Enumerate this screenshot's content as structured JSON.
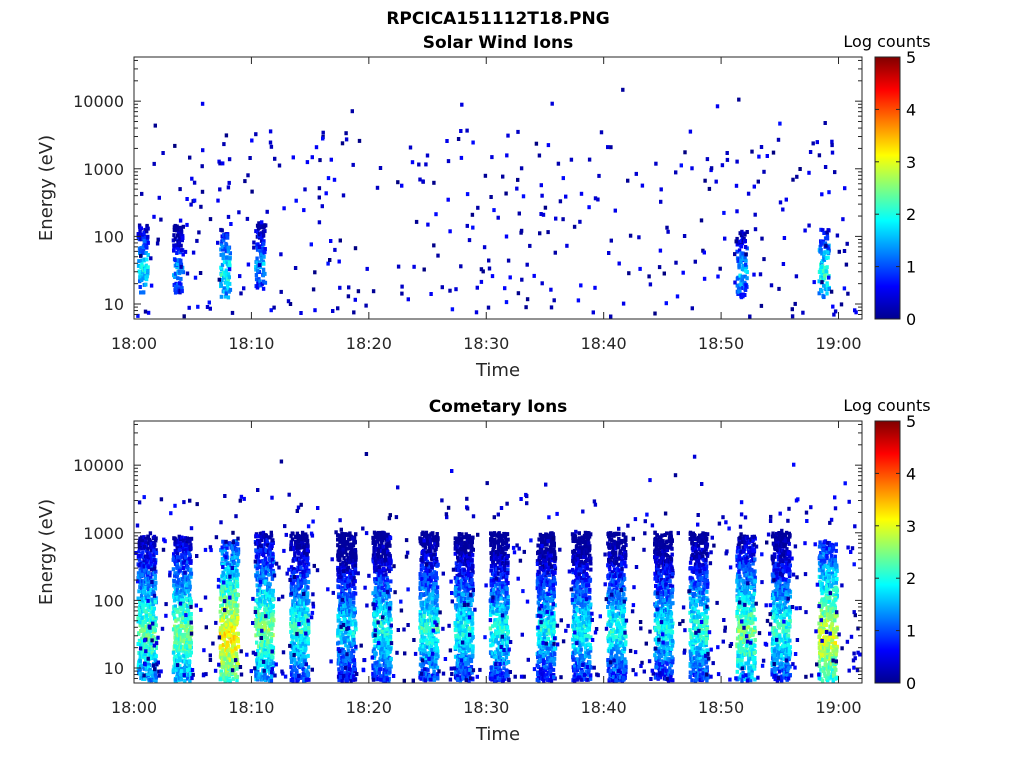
{
  "figure_title": "RPCICA151112T18.PNG",
  "colormap": "jet",
  "chart_data": [
    {
      "type": "heatmap",
      "title": "Solar Wind Ions",
      "xlabel": "Time",
      "ylabel": "Energy (eV)",
      "x_range": [
        "18:00",
        "19:02"
      ],
      "x_ticks": [
        "18:00",
        "18:10",
        "18:20",
        "18:30",
        "18:40",
        "18:50",
        "19:00"
      ],
      "y_scale": "log",
      "y_range": [
        6,
        45000
      ],
      "y_ticks": [
        10,
        100,
        1000,
        10000
      ],
      "y_tick_labels": [
        "10",
        "100",
        "1000",
        "10000"
      ],
      "colorbar": {
        "label": "Log counts",
        "range": [
          0,
          5
        ],
        "ticks": [
          "0",
          "1",
          "2",
          "3",
          "4",
          "5"
        ]
      },
      "intensity_peaks": [
        {
          "time": "18:01",
          "energy_ev": 35,
          "log_counts": 2.2
        },
        {
          "time": "18:04",
          "energy_ev": 35,
          "log_counts": 1.8
        },
        {
          "time": "18:08",
          "energy_ev": 30,
          "log_counts": 2.4
        },
        {
          "time": "18:11",
          "energy_ev": 40,
          "log_counts": 1.9
        },
        {
          "time": "18:52",
          "energy_ev": 30,
          "log_counts": 2.0
        },
        {
          "time": "18:59",
          "energy_ev": 30,
          "log_counts": 2.5
        }
      ]
    },
    {
      "type": "heatmap",
      "title": "Cometary Ions",
      "xlabel": "Time",
      "ylabel": "Energy (eV)",
      "x_range": [
        "18:00",
        "19:02"
      ],
      "x_ticks": [
        "18:00",
        "18:10",
        "18:20",
        "18:30",
        "18:40",
        "18:50",
        "19:00"
      ],
      "y_scale": "log",
      "y_range": [
        6,
        45000
      ],
      "y_ticks": [
        10,
        100,
        1000,
        10000
      ],
      "y_tick_labels": [
        "10",
        "100",
        "1000",
        "10000"
      ],
      "colorbar": {
        "label": "Log counts",
        "range": [
          0,
          5
        ],
        "ticks": [
          "0",
          "1",
          "2",
          "3",
          "4",
          "5"
        ]
      },
      "intensity_peaks": [
        {
          "time": "18:01",
          "energy_ev": 35,
          "log_counts": 2.8
        },
        {
          "time": "18:04",
          "energy_ev": 35,
          "log_counts": 2.9
        },
        {
          "time": "18:08",
          "energy_ev": 30,
          "log_counts": 3.6
        },
        {
          "time": "18:11",
          "energy_ev": 40,
          "log_counts": 2.9
        },
        {
          "time": "18:14",
          "energy_ev": 40,
          "log_counts": 2.5
        },
        {
          "time": "18:18",
          "energy_ev": 40,
          "log_counts": 2.2
        },
        {
          "time": "18:21",
          "energy_ev": 40,
          "log_counts": 2.4
        },
        {
          "time": "18:25",
          "energy_ev": 40,
          "log_counts": 2.5
        },
        {
          "time": "18:28",
          "energy_ev": 40,
          "log_counts": 2.4
        },
        {
          "time": "18:31",
          "energy_ev": 40,
          "log_counts": 2.4
        },
        {
          "time": "18:35",
          "energy_ev": 40,
          "log_counts": 2.3
        },
        {
          "time": "18:38",
          "energy_ev": 40,
          "log_counts": 2.3
        },
        {
          "time": "18:41",
          "energy_ev": 40,
          "log_counts": 2.4
        },
        {
          "time": "18:45",
          "energy_ev": 40,
          "log_counts": 2.3
        },
        {
          "time": "18:48",
          "energy_ev": 40,
          "log_counts": 2.5
        },
        {
          "time": "18:52",
          "energy_ev": 35,
          "log_counts": 2.9
        },
        {
          "time": "18:55",
          "energy_ev": 40,
          "log_counts": 2.5
        },
        {
          "time": "18:59",
          "energy_ev": 30,
          "log_counts": 3.4
        }
      ]
    }
  ]
}
